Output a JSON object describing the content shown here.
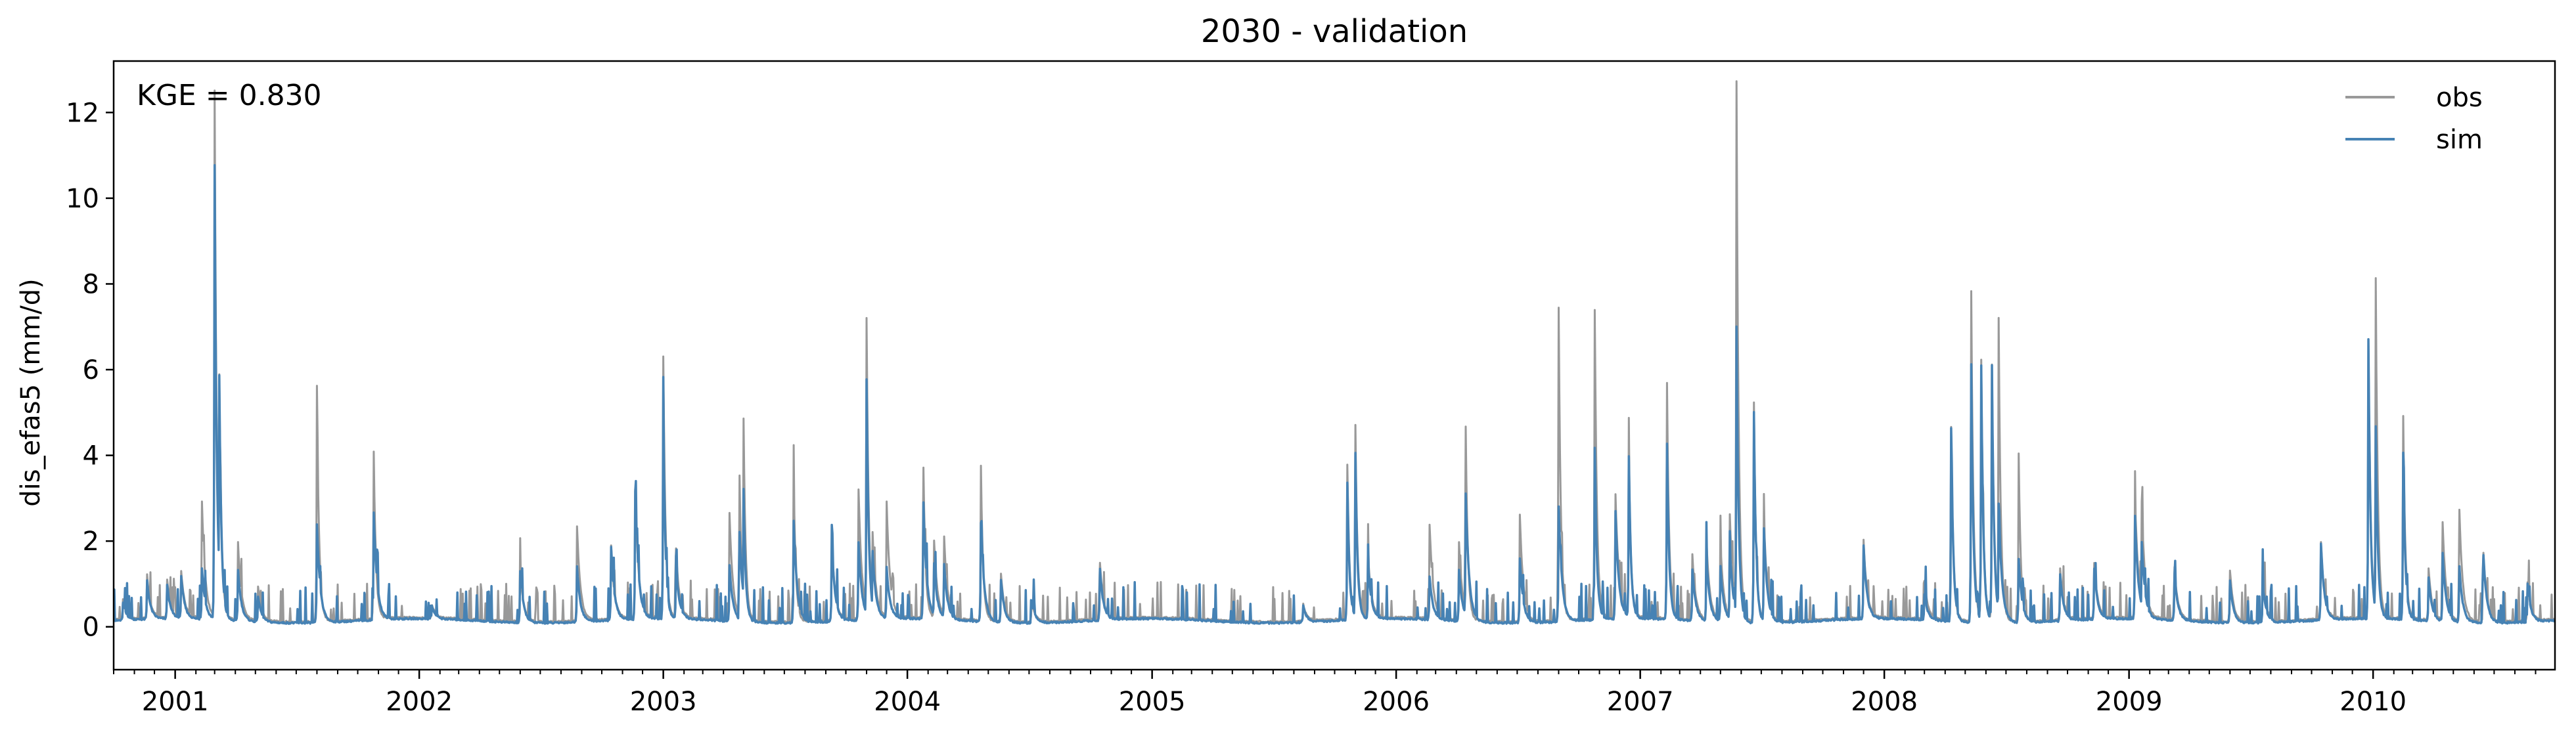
{
  "chart_data": {
    "type": "line",
    "title": "2030 - validation",
    "xlabel": "",
    "ylabel": "dis_efas5 (mm/d)",
    "annotation": "KGE = 0.830",
    "xlim": [
      "2000-10-01",
      "2010-09-30"
    ],
    "ylim": [
      -1,
      13.2
    ],
    "yticks": [
      0,
      2,
      4,
      6,
      8,
      10,
      12
    ],
    "xtick_labels": [
      "2001",
      "2002",
      "2003",
      "2004",
      "2005",
      "2006",
      "2007",
      "2008",
      "2009",
      "2010"
    ],
    "grid": false,
    "legend_position": "top-right",
    "series": [
      {
        "name": "obs",
        "color": "#999999",
        "baseflow": 0.15,
        "peaks": [
          [
            "2000-10-15",
            0.45
          ],
          [
            "2000-11-20",
            1.0
          ],
          [
            "2000-12-20",
            0.9
          ],
          [
            "2001-01-10",
            1.1
          ],
          [
            "2001-02-10",
            2.7
          ],
          [
            "2001-03-01",
            12.3
          ],
          [
            "2001-03-08",
            5.7
          ],
          [
            "2001-04-05",
            1.8
          ],
          [
            "2001-05-05",
            0.8
          ],
          [
            "2001-08-01",
            5.5
          ],
          [
            "2001-10-25",
            3.9
          ],
          [
            "2002-01-20",
            0.3
          ],
          [
            "2002-06-01",
            1.2
          ],
          [
            "2002-08-25",
            2.2
          ],
          [
            "2002-10-15",
            1.7
          ],
          [
            "2002-11-20",
            3.0
          ],
          [
            "2003-01-01",
            6.1
          ],
          [
            "2003-01-20",
            1.6
          ],
          [
            "2003-04-10",
            2.5
          ],
          [
            "2003-04-25",
            3.4
          ],
          [
            "2003-05-01",
            4.7
          ],
          [
            "2003-07-15",
            3.4
          ],
          [
            "2003-09-10",
            1.8
          ],
          [
            "2003-10-20",
            3.0
          ],
          [
            "2003-11-01",
            7.0
          ],
          [
            "2003-11-10",
            2.0
          ],
          [
            "2003-12-01",
            2.7
          ],
          [
            "2004-01-25",
            3.5
          ],
          [
            "2004-02-10",
            1.8
          ],
          [
            "2004-02-25",
            1.9
          ],
          [
            "2004-04-20",
            3.6
          ],
          [
            "2004-05-20",
            1.1
          ],
          [
            "2004-07-05",
            0.5
          ],
          [
            "2004-10-15",
            1.3
          ],
          [
            "2005-08-15",
            0.4
          ],
          [
            "2005-10-20",
            3.6
          ],
          [
            "2005-11-01",
            4.5
          ],
          [
            "2005-11-20",
            1.5
          ],
          [
            "2006-02-20",
            2.2
          ],
          [
            "2006-04-05",
            1.8
          ],
          [
            "2006-04-15",
            4.5
          ],
          [
            "2006-07-05",
            2.5
          ],
          [
            "2006-09-01",
            7.3
          ],
          [
            "2006-10-25",
            7.2
          ],
          [
            "2006-11-25",
            2.9
          ],
          [
            "2006-12-15",
            3.8
          ],
          [
            "2007-02-10",
            5.5
          ],
          [
            "2007-03-20",
            1.5
          ],
          [
            "2007-04-10",
            1.9
          ],
          [
            "2007-05-01",
            1.8
          ],
          [
            "2007-05-15",
            2.5
          ],
          [
            "2007-05-25",
            12.6
          ],
          [
            "2007-06-20",
            5.1
          ],
          [
            "2007-07-05",
            2.4
          ],
          [
            "2007-12-01",
            1.8
          ],
          [
            "2008-03-01",
            0.9
          ],
          [
            "2008-04-10",
            4.5
          ],
          [
            "2008-05-10",
            7.7
          ],
          [
            "2008-05-25",
            6.1
          ],
          [
            "2008-06-10",
            6.0
          ],
          [
            "2008-06-20",
            7.1
          ],
          [
            "2008-07-20",
            3.9
          ],
          [
            "2008-09-20",
            1.2
          ],
          [
            "2008-11-10",
            1.3
          ],
          [
            "2009-01-10",
            2.8
          ],
          [
            "2009-01-20",
            2.7
          ],
          [
            "2009-03-10",
            1.2
          ],
          [
            "2009-06-01",
            1.2
          ],
          [
            "2009-07-20",
            1.0
          ],
          [
            "2009-10-15",
            1.8
          ],
          [
            "2009-12-25",
            6.5
          ],
          [
            "2010-01-05",
            7.9
          ],
          [
            "2010-02-15",
            4.7
          ],
          [
            "2010-03-25",
            1.2
          ],
          [
            "2010-04-15",
            2.3
          ],
          [
            "2010-05-10",
            2.6
          ],
          [
            "2010-06-15",
            1.6
          ],
          [
            "2010-08-20",
            0.9
          ]
        ]
      },
      {
        "name": "sim",
        "color": "#4682b4",
        "baseflow": 0.12,
        "peaks": [
          [
            "2000-10-15",
            0.4
          ],
          [
            "2000-11-20",
            0.9
          ],
          [
            "2000-12-20",
            0.8
          ],
          [
            "2001-01-10",
            1.0
          ],
          [
            "2001-02-10",
            1.2
          ],
          [
            "2001-03-01",
            10.6
          ],
          [
            "2001-03-08",
            5.7
          ],
          [
            "2001-04-05",
            1.2
          ],
          [
            "2001-05-05",
            0.6
          ],
          [
            "2001-08-01",
            2.3
          ],
          [
            "2001-10-25",
            2.5
          ],
          [
            "2002-01-20",
            0.3
          ],
          [
            "2002-06-01",
            1.2
          ],
          [
            "2002-08-25",
            1.3
          ],
          [
            "2002-10-15",
            1.7
          ],
          [
            "2002-11-20",
            3.0
          ],
          [
            "2003-01-01",
            4.8
          ],
          [
            "2003-01-20",
            1.2
          ],
          [
            "2003-04-10",
            1.3
          ],
          [
            "2003-04-25",
            2.1
          ],
          [
            "2003-05-01",
            3.1
          ],
          [
            "2003-07-15",
            2.4
          ],
          [
            "2003-09-10",
            1.8
          ],
          [
            "2003-10-20",
            1.8
          ],
          [
            "2003-11-01",
            5.6
          ],
          [
            "2003-11-10",
            1.6
          ],
          [
            "2003-12-01",
            1.2
          ],
          [
            "2004-01-25",
            2.7
          ],
          [
            "2004-02-10",
            1.3
          ],
          [
            "2004-02-25",
            1.3
          ],
          [
            "2004-04-20",
            2.3
          ],
          [
            "2004-05-20",
            1.0
          ],
          [
            "2004-07-05",
            0.5
          ],
          [
            "2004-10-15",
            1.2
          ],
          [
            "2005-08-15",
            0.4
          ],
          [
            "2005-10-20",
            3.2
          ],
          [
            "2005-11-01",
            3.9
          ],
          [
            "2005-11-20",
            1.3
          ],
          [
            "2006-02-20",
            1.0
          ],
          [
            "2006-04-05",
            1.2
          ],
          [
            "2006-04-15",
            3.0
          ],
          [
            "2006-07-05",
            1.5
          ],
          [
            "2006-09-01",
            2.7
          ],
          [
            "2006-10-25",
            4.0
          ],
          [
            "2006-11-25",
            2.5
          ],
          [
            "2006-12-15",
            3.8
          ],
          [
            "2007-02-10",
            4.1
          ],
          [
            "2007-03-20",
            1.2
          ],
          [
            "2007-04-10",
            1.5
          ],
          [
            "2007-05-01",
            1.3
          ],
          [
            "2007-05-15",
            1.8
          ],
          [
            "2007-05-25",
            6.9
          ],
          [
            "2007-06-20",
            4.9
          ],
          [
            "2007-07-05",
            2.2
          ],
          [
            "2007-12-01",
            1.7
          ],
          [
            "2008-03-01",
            0.6
          ],
          [
            "2008-04-10",
            4.5
          ],
          [
            "2008-05-10",
            6.0
          ],
          [
            "2008-05-25",
            6.0
          ],
          [
            "2008-06-10",
            6.0
          ],
          [
            "2008-06-20",
            2.8
          ],
          [
            "2008-07-20",
            1.5
          ],
          [
            "2008-09-20",
            1.1
          ],
          [
            "2008-11-10",
            1.2
          ],
          [
            "2009-01-10",
            2.4
          ],
          [
            "2009-01-20",
            1.8
          ],
          [
            "2009-03-10",
            1.1
          ],
          [
            "2009-06-01",
            1.0
          ],
          [
            "2009-07-20",
            0.9
          ],
          [
            "2009-10-15",
            1.8
          ],
          [
            "2009-12-25",
            6.5
          ],
          [
            "2010-01-05",
            4.5
          ],
          [
            "2010-02-15",
            3.9
          ],
          [
            "2010-03-25",
            1.0
          ],
          [
            "2010-04-15",
            1.6
          ],
          [
            "2010-05-10",
            1.3
          ],
          [
            "2010-06-15",
            1.6
          ],
          [
            "2010-08-20",
            0.9
          ]
        ]
      }
    ]
  }
}
